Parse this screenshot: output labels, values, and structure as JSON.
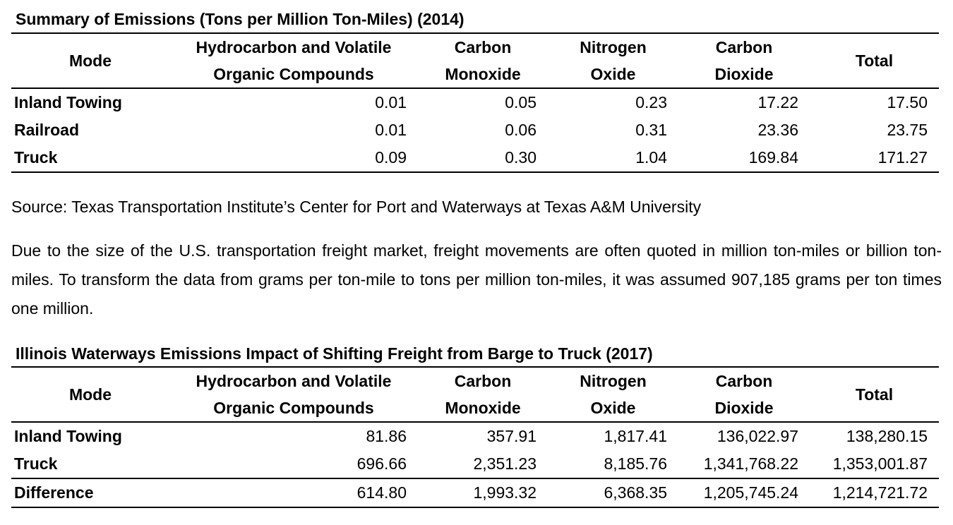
{
  "table1": {
    "title": "Summary of Emissions (Tons per Million Ton-Miles) (2014)",
    "headers": {
      "mode": "Mode",
      "hc_line1": "Hydrocarbon and Volatile",
      "hc_line2": "Organic Compounds",
      "co_line1": "Carbon",
      "co_line2": "Monoxide",
      "no_line1": "Nitrogen",
      "no_line2": "Oxide",
      "co2_line1": "Carbon",
      "co2_line2": "Dioxide",
      "total": "Total"
    },
    "rows": [
      {
        "mode": "Inland Towing",
        "hc": "0.01",
        "co": "0.05",
        "no": "0.23",
        "co2": "17.22",
        "total": "17.50"
      },
      {
        "mode": "Railroad",
        "hc": "0.01",
        "co": "0.06",
        "no": "0.31",
        "co2": "23.36",
        "total": "23.75"
      },
      {
        "mode": "Truck",
        "hc": "0.09",
        "co": "0.30",
        "no": "1.04",
        "co2": "169.84",
        "total": "171.27"
      }
    ]
  },
  "source": "Source: Texas Transportation Institute’s Center for Port and Waterways at Texas A&M University",
  "paragraph": "Due to the size of the U.S. transportation freight market, freight movements are often quoted in million ton-miles or billion ton-miles.  To transform the data from grams per ton-mile to tons per million ton-miles, it was assumed 907,185 grams per ton times one million.",
  "table2": {
    "title": "Illinois Waterways Emissions Impact of Shifting Freight from Barge to Truck (2017)",
    "headers": {
      "mode": "Mode",
      "hc_line1": "Hydrocarbon and Volatile",
      "hc_line2": "Organic Compounds",
      "co_line1": "Carbon",
      "co_line2": "Monoxide",
      "no_line1": "Nitrogen",
      "no_line2": "Oxide",
      "co2_line1": "Carbon",
      "co2_line2": "Dioxide",
      "total": "Total"
    },
    "rows": [
      {
        "mode": "Inland Towing",
        "hc": "81.86",
        "co": "357.91",
        "no": "1,817.41",
        "co2": "136,022.97",
        "total": "138,280.15"
      },
      {
        "mode": "Truck",
        "hc": "696.66",
        "co": "2,351.23",
        "no": "8,185.76",
        "co2": "1,341,768.22",
        "total": "1,353,001.87"
      },
      {
        "mode": "Difference",
        "hc": "614.80",
        "co": "1,993.32",
        "no": "6,368.35",
        "co2": "1,205,745.24",
        "total": "1,214,721.72"
      }
    ]
  }
}
